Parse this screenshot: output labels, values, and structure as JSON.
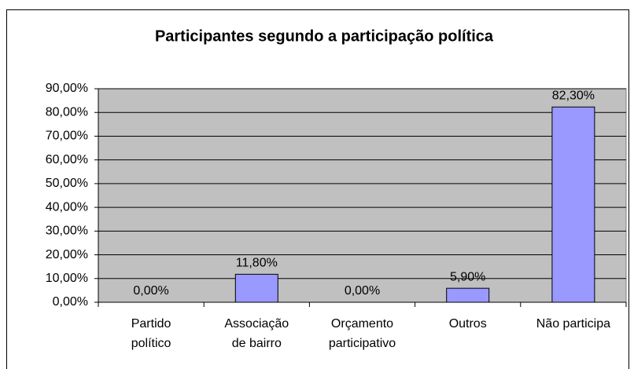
{
  "chart_data": {
    "type": "bar",
    "title": "Participantes segundo a participação política",
    "categories": [
      [
        "Partido",
        "político"
      ],
      [
        "Associação",
        "de bairro"
      ],
      [
        "Orçamento",
        "participativo"
      ],
      [
        "Outros"
      ],
      [
        "Não participa"
      ]
    ],
    "values": [
      0,
      11.8,
      0,
      5.9,
      82.3
    ],
    "value_labels": [
      "0,00%",
      "11,80%",
      "0,00%",
      "5,90%",
      "82,30%"
    ],
    "color": "#9999ff",
    "ylim": [
      0,
      90
    ],
    "yticks": [
      {
        "value": 0,
        "label": "0,00%"
      },
      {
        "value": 10,
        "label": "10,00%"
      },
      {
        "value": 20,
        "label": "20,00%"
      },
      {
        "value": 30,
        "label": "30,00%"
      },
      {
        "value": 40,
        "label": "40,00%"
      },
      {
        "value": 50,
        "label": "50,00%"
      },
      {
        "value": 60,
        "label": "60,00%"
      },
      {
        "value": 70,
        "label": "70,00%"
      },
      {
        "value": 80,
        "label": "80,00%"
      },
      {
        "value": 90,
        "label": "90,00%"
      }
    ],
    "grid": true
  }
}
